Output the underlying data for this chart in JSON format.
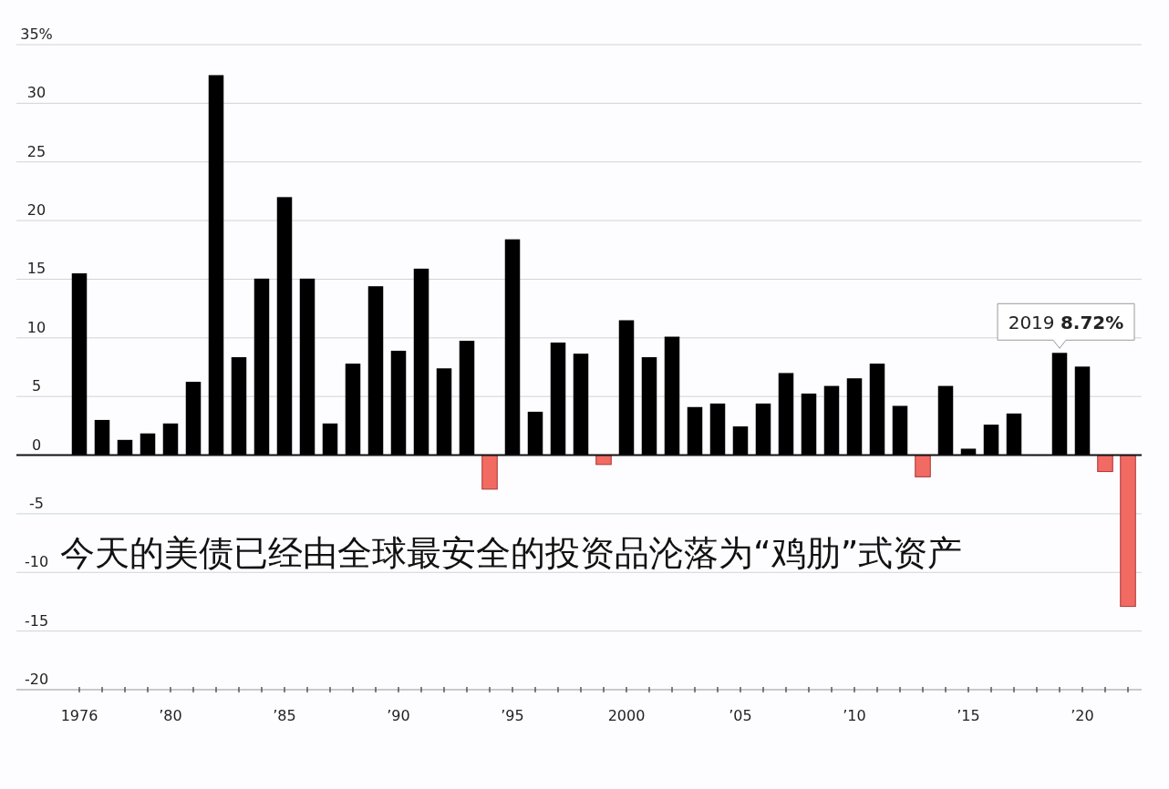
{
  "chart_data": {
    "type": "bar",
    "categories": [
      "1976",
      null,
      null,
      null,
      "’80",
      null,
      null,
      null,
      null,
      "’85",
      null,
      null,
      null,
      null,
      "’90",
      null,
      null,
      null,
      null,
      "’95",
      null,
      null,
      null,
      null,
      "2000",
      null,
      null,
      null,
      null,
      "’05",
      null,
      null,
      null,
      null,
      "’10",
      null,
      null,
      null,
      null,
      "’15",
      null,
      null,
      null,
      null,
      "’20",
      null,
      null
    ],
    "values": [
      15.5,
      3.0,
      1.3,
      1.85,
      2.7,
      6.25,
      32.4,
      8.35,
      15.05,
      22.0,
      15.05,
      2.7,
      7.8,
      14.4,
      8.9,
      15.9,
      7.4,
      9.75,
      -2.9,
      18.4,
      3.7,
      9.6,
      8.65,
      -0.8,
      11.5,
      8.35,
      10.1,
      4.1,
      4.4,
      2.45,
      4.4,
      7.0,
      5.25,
      5.9,
      6.55,
      7.8,
      4.2,
      -1.85,
      5.9,
      0.55,
      2.6,
      3.55,
      0,
      8.72,
      7.55,
      -1.4,
      -12.9
    ],
    "colors": [
      "#000000",
      "#000000",
      "#000000",
      "#000000",
      "#000000",
      "#000000",
      "#000000",
      "#000000",
      "#000000",
      "#000000",
      "#000000",
      "#000000",
      "#000000",
      "#000000",
      "#000000",
      "#000000",
      "#000000",
      "#000000",
      "#f26b63",
      "#000000",
      "#000000",
      "#000000",
      "#000000",
      "#f26b63",
      "#000000",
      "#000000",
      "#000000",
      "#000000",
      "#000000",
      "#000000",
      "#000000",
      "#000000",
      "#000000",
      "#000000",
      "#000000",
      "#000000",
      "#000000",
      "#f26b63",
      "#000000",
      "#000000",
      "#000000",
      "#000000",
      "#000000",
      "#000000",
      "#000000",
      "#f26b63",
      "#f26b63"
    ],
    "value_labels": [
      null,
      null,
      null,
      null,
      null,
      null,
      null,
      null,
      null,
      null,
      null,
      null,
      null,
      null,
      null,
      null,
      null,
      null,
      null,
      null,
      null,
      null,
      null,
      null,
      null,
      null,
      null,
      null,
      null,
      null,
      null,
      null,
      null,
      null,
      null,
      null,
      null,
      null,
      null,
      null,
      null,
      null,
      null,
      "2019 **8.72%**",
      null,
      null,
      null
    ],
    "ylim": [
      -20,
      35
    ],
    "yticks": [
      -20,
      -15,
      -10,
      -5,
      0,
      5,
      10,
      15,
      20,
      25,
      30,
      {
        "value": 35,
        "label": "35%"
      }
    ],
    "grid": "y",
    "annotations": [
      "今天的美债已经由全球最安全的投资品沦落为“鸡肋”式资产"
    ]
  }
}
